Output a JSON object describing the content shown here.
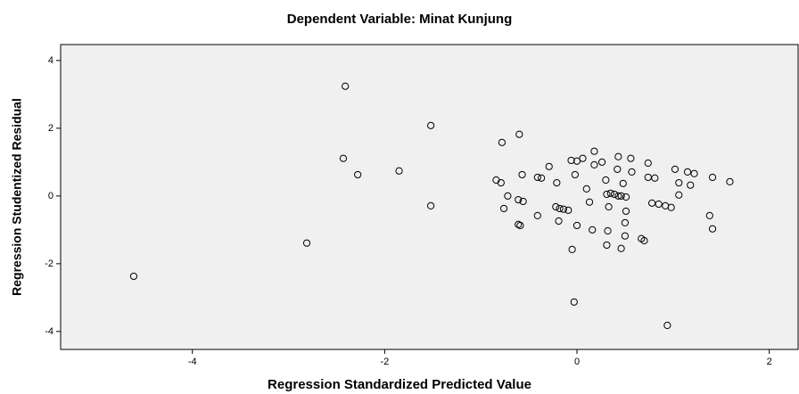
{
  "chart_data": {
    "type": "scatter",
    "title": "Dependent Variable: Minat Kunjung",
    "x_label": "Regression Standardized Predicted Value",
    "y_label": "Regression Studentized Residual",
    "xlim": [
      -5.37,
      2.3
    ],
    "ylim": [
      -4.53,
      4.47
    ],
    "xticks": [
      -4,
      -2,
      0,
      2
    ],
    "yticks": [
      -4,
      -2,
      0,
      2,
      4
    ],
    "color": "#000000",
    "series": [
      {
        "x": [
          -4.61,
          -2.81,
          -2.41,
          -2.43,
          -2.28,
          -1.85,
          -1.52,
          -1.52,
          -0.78,
          -0.6,
          -0.84,
          -0.79,
          -0.72,
          -0.76,
          -0.57,
          -0.61,
          -0.56,
          -0.61,
          -0.59,
          -0.41,
          -0.37,
          -0.41,
          -0.29,
          -0.21,
          -0.22,
          -0.18,
          -0.14,
          -0.09,
          -0.19,
          -0.06,
          0,
          0.06,
          -0.02,
          -0.05,
          -0.03,
          0,
          0.1,
          0.13,
          0.16,
          0.18,
          0.18,
          0.26,
          0.3,
          0.31,
          0.35,
          0.39,
          0.43,
          0.46,
          0.51,
          0.33,
          0.32,
          0.31,
          0.43,
          0.42,
          0.48,
          0.51,
          0.5,
          0.5,
          0.46,
          0.56,
          0.57,
          0.67,
          0.7,
          0.74,
          0.74,
          0.81,
          0.78,
          0.85,
          0.92,
          0.98,
          1.02,
          1.06,
          1.06,
          1.15,
          1.22,
          1.18,
          1.41,
          1.38,
          1.41,
          1.59,
          0.94
        ],
        "values": [
          -2.37,
          -1.39,
          3.24,
          1.11,
          0.63,
          0.74,
          2.08,
          -0.29,
          1.58,
          1.82,
          0.47,
          0.39,
          0,
          -0.37,
          0.63,
          -0.11,
          -0.16,
          -0.84,
          -0.87,
          0.55,
          0.53,
          -0.58,
          0.87,
          0.39,
          -0.32,
          -0.37,
          -0.39,
          -0.42,
          -0.74,
          1.05,
          1.03,
          1.11,
          0.63,
          -1.58,
          -3.13,
          -0.87,
          0.21,
          -0.18,
          -1.0,
          1.32,
          0.92,
          1.0,
          0.47,
          0.05,
          0.08,
          0.05,
          0,
          0,
          -0.03,
          -0.32,
          -1.03,
          -1.45,
          1.16,
          0.79,
          0.37,
          -0.45,
          -0.79,
          -1.18,
          -1.55,
          1.11,
          0.71,
          -1.26,
          -1.32,
          0.97,
          0.55,
          0.53,
          -0.21,
          -0.24,
          -0.29,
          -0.34,
          0.79,
          0.39,
          0.03,
          0.71,
          0.66,
          0.32,
          0.55,
          -0.58,
          -0.97,
          0.42,
          -3.82
        ]
      }
    ]
  }
}
